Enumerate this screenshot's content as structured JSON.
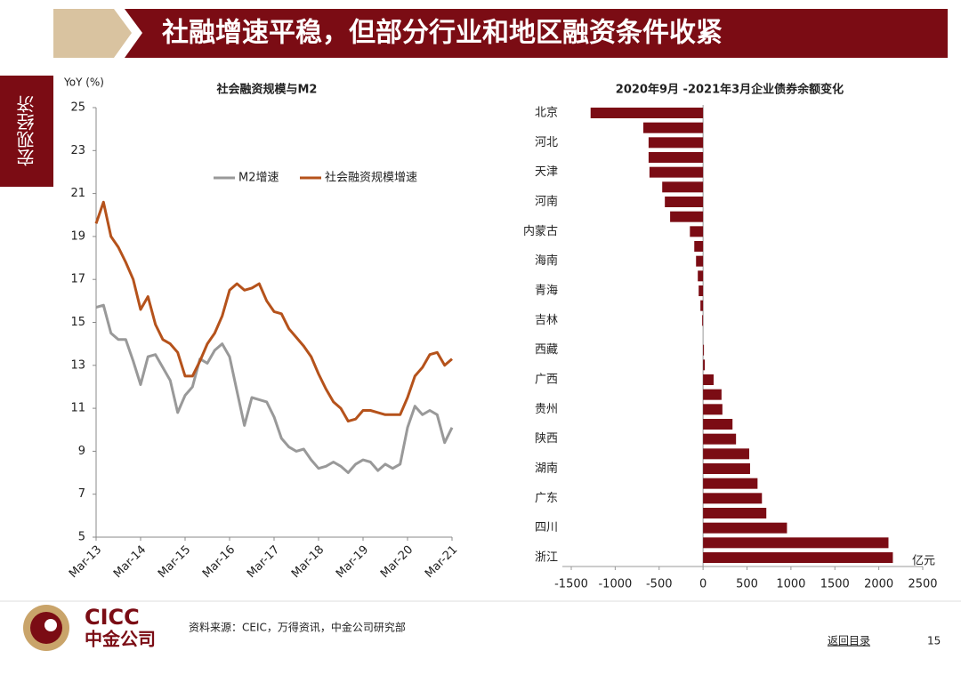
{
  "header": {
    "title": "社融增速平稳，但部分行业和地区融资条件收紧",
    "section": "宏观经济"
  },
  "footer": {
    "logo_en": "CICC",
    "logo_cn": "中金公司",
    "source": "资料来源：CEIC，万得资讯，中金公司研究部",
    "back_link": "返回目录",
    "page": "15"
  },
  "chart_data": [
    {
      "type": "line",
      "title": "社会融资规模与M2",
      "y_label": "YoY (%)",
      "categories": [
        "Mar-13",
        null,
        null,
        null,
        null,
        null,
        "Mar-14",
        null,
        null,
        null,
        null,
        null,
        "Mar-15",
        null,
        null,
        null,
        null,
        null,
        "Mar-16",
        null,
        null,
        null,
        null,
        null,
        "Mar-17",
        null,
        null,
        null,
        null,
        null,
        "Mar-18",
        null,
        null,
        null,
        null,
        null,
        "Mar-19",
        null,
        null,
        null,
        null,
        null,
        "Mar-20",
        null,
        null,
        null,
        null,
        null,
        "Mar-21"
      ],
      "ylim": [
        5,
        25
      ],
      "yticks": [
        5,
        7,
        9,
        11,
        13,
        15,
        17,
        19,
        21,
        23,
        25
      ],
      "series": [
        {
          "name": "M2增速",
          "color": "#999999",
          "values": [
            15.7,
            15.8,
            14.5,
            14.2,
            14.2,
            13.2,
            12.1,
            13.4,
            13.5,
            12.9,
            12.3,
            10.8,
            11.6,
            12.0,
            13.3,
            13.1,
            13.7,
            14.0,
            13.4,
            11.8,
            10.2,
            11.5,
            11.4,
            11.3,
            10.6,
            9.6,
            9.2,
            9.0,
            9.1,
            8.6,
            8.2,
            8.3,
            8.5,
            8.3,
            8.0,
            8.4,
            8.6,
            8.5,
            8.1,
            8.4,
            8.2,
            8.4,
            10.1,
            11.1,
            10.7,
            10.9,
            10.7,
            9.4,
            10.1
          ]
        },
        {
          "name": "社会融资规模增速",
          "color": "#b5521b",
          "values": [
            19.6,
            20.6,
            19.0,
            18.5,
            17.8,
            17.0,
            15.6,
            16.2,
            14.9,
            14.2,
            14.0,
            13.6,
            12.5,
            12.5,
            13.2,
            14.0,
            14.5,
            15.3,
            16.5,
            16.8,
            16.5,
            16.6,
            16.8,
            16.0,
            15.5,
            15.4,
            14.7,
            14.3,
            13.9,
            13.4,
            12.6,
            11.9,
            11.3,
            11.0,
            10.4,
            10.5,
            10.9,
            10.9,
            10.8,
            10.7,
            10.7,
            10.7,
            11.5,
            12.5,
            12.9,
            13.5,
            13.6,
            13.0,
            13.3
          ]
        }
      ]
    },
    {
      "type": "bar",
      "orientation": "horizontal",
      "title": "2020年9月 -2021年3月企业债券余额变化",
      "unit_label": "亿元",
      "color": "#7b0c14",
      "categories": [
        "北京",
        null,
        "河北",
        null,
        "天津",
        null,
        "河南",
        null,
        "内蒙古",
        null,
        "海南",
        null,
        "青海",
        null,
        "吉林",
        null,
        "西藏",
        null,
        "广西",
        null,
        "贵州",
        null,
        "陕西",
        null,
        "湖南",
        null,
        "广东",
        null,
        "四川",
        null,
        "浙江"
      ],
      "values": [
        -1280,
        -680,
        -620,
        -620,
        -610,
        -465,
        -435,
        -375,
        -150,
        -100,
        -80,
        -60,
        -50,
        -30,
        -10,
        0,
        10,
        20,
        120,
        210,
        220,
        335,
        375,
        525,
        535,
        620,
        670,
        720,
        955,
        2110,
        2160
      ],
      "xlim": [
        -1500,
        2500
      ],
      "xticks": [
        -1500,
        -1000,
        -500,
        0,
        500,
        1000,
        1500,
        2000,
        2500
      ]
    }
  ]
}
